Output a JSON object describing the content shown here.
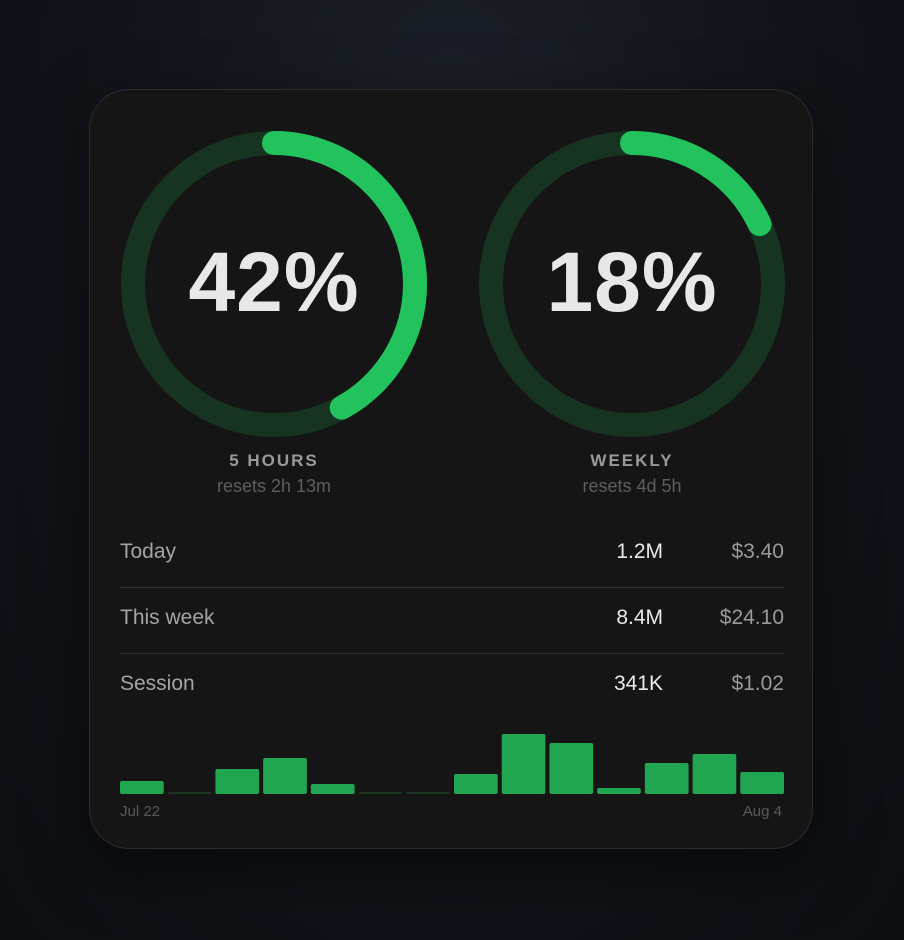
{
  "gauges": [
    {
      "percent_text": "42%",
      "fraction": 0.42,
      "label": "5 HOURS",
      "reset": "resets 2h 13m"
    },
    {
      "percent_text": "18%",
      "fraction": 0.18,
      "label": "WEEKLY",
      "reset": "resets 4d 5h"
    }
  ],
  "stats": [
    {
      "label": "Today",
      "tokens": "1.2M",
      "cost": "$3.40"
    },
    {
      "label": "This week",
      "tokens": "8.4M",
      "cost": "$24.10"
    },
    {
      "label": "Session",
      "tokens": "341K",
      "cost": "$1.02"
    }
  ],
  "chart_data": {
    "type": "bar",
    "start_label": "Jul 22",
    "end_label": "Aug 4",
    "values": [
      13,
      2,
      25,
      36,
      10,
      2,
      2,
      20,
      60,
      51,
      6,
      31,
      40,
      22
    ],
    "ylim": [
      0,
      60
    ]
  },
  "colors": {
    "accent": "#22c25c",
    "track": "#173321",
    "bar": "#22a551",
    "bar_empty": "#1b3524"
  }
}
